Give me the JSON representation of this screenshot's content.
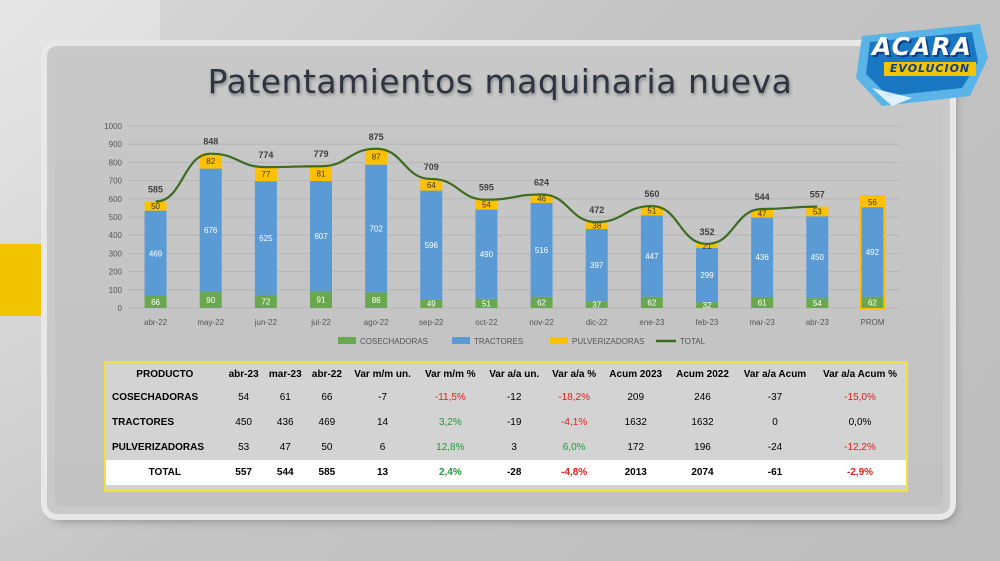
{
  "title": "Patentamientos maquinaria nueva",
  "logo": {
    "main": "ACARA",
    "sub": "EVOLUCION"
  },
  "colors": {
    "cosechadoras": "#6aa84f",
    "tractores": "#5b9bd5",
    "pulverizadoras": "#ffc000",
    "total": "#3d6b1f",
    "accent_yellow": "#f2c400"
  },
  "chart_data": {
    "type": "bar",
    "stacked": true,
    "categories": [
      "abr-22",
      "may-22",
      "jun-22",
      "jul-22",
      "ago-22",
      "sep-22",
      "oct-22",
      "nov-22",
      "dic-22",
      "ene-23",
      "feb-23",
      "mar-23",
      "abr-23",
      "PROM"
    ],
    "series": [
      {
        "name": "COSECHADORAS",
        "values": [
          66,
          90,
          72,
          91,
          86,
          49,
          51,
          62,
          37,
          62,
          32,
          61,
          54,
          62
        ]
      },
      {
        "name": "TRACTORES",
        "values": [
          469,
          676,
          625,
          607,
          702,
          596,
          490,
          516,
          397,
          447,
          299,
          436,
          450,
          492
        ]
      },
      {
        "name": "PULVERIZADORAS",
        "values": [
          50,
          82,
          77,
          81,
          87,
          64,
          54,
          46,
          38,
          51,
          21,
          47,
          53,
          56
        ]
      },
      {
        "name": "TOTAL",
        "type": "line",
        "values": [
          585,
          848,
          774,
          779,
          875,
          709,
          595,
          624,
          472,
          560,
          352,
          544,
          557,
          null
        ]
      }
    ],
    "yticks": [
      "0",
      "100",
      "200",
      "300",
      "400",
      "500",
      "600",
      "700",
      "800",
      "900",
      "1000"
    ],
    "ylim": [
      0,
      1000
    ],
    "legend": "bottom",
    "grid": true
  },
  "table": {
    "headers": [
      "PRODUCTO",
      "abr-23",
      "mar-23",
      "abr-22",
      "Var m/m un.",
      "Var m/m %",
      "Var a/a un.",
      "Var a/a %",
      "Acum 2023",
      "Acum 2022",
      "Var a/a Acum",
      "Var a/a Acum %"
    ],
    "rows": [
      [
        "COSECHADORAS",
        "54",
        "61",
        "66",
        "-7",
        "-11,5%",
        "-12",
        "-18,2%",
        "209",
        "246",
        "-37",
        "-15,0%"
      ],
      [
        "TRACTORES",
        "450",
        "436",
        "469",
        "14",
        "3,2%",
        "-19",
        "-4,1%",
        "1632",
        "1632",
        "0",
        "0,0%"
      ],
      [
        "PULVERIZADORAS",
        "53",
        "47",
        "50",
        "6",
        "12,8%",
        "3",
        "6,0%",
        "172",
        "196",
        "-24",
        "-12,2%"
      ],
      [
        "TOTAL",
        "557",
        "544",
        "585",
        "13",
        "2,4%",
        "-28",
        "-4,8%",
        "2013",
        "2074",
        "-61",
        "-2,9%"
      ]
    ],
    "row_colors": [
      [
        "",
        "",
        "",
        "",
        "",
        "neg",
        "",
        "neg",
        "",
        "",
        "",
        "neg"
      ],
      [
        "",
        "",
        "",
        "",
        "",
        "pos",
        "",
        "neg",
        "",
        "",
        "",
        ""
      ],
      [
        "",
        "",
        "",
        "",
        "",
        "pos",
        "",
        "pos",
        "",
        "",
        "",
        "neg"
      ],
      [
        "",
        "",
        "",
        "",
        "",
        "pos",
        "",
        "neg",
        "",
        "",
        "",
        "neg"
      ]
    ]
  }
}
